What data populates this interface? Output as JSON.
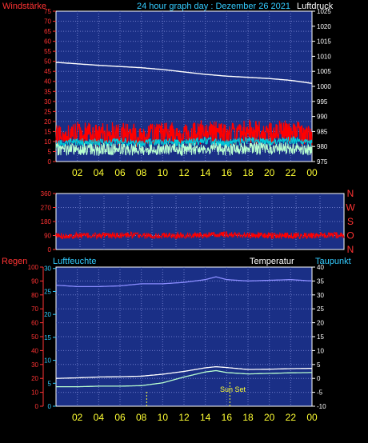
{
  "title": "24 hour graph day : Dezember 26 2021",
  "colors": {
    "panel": "#1a2f86",
    "grid": "#6b78c8",
    "wind": "#ff0000",
    "gust_low": "#b8ffd0",
    "pressure": "#ffffff",
    "humidity": "#8a8cff",
    "temp": "#ffffff",
    "dew": "#b8ffd0",
    "tick_yellow": "#ffff33",
    "label_red": "#ff3333",
    "label_cyan": "#33ccff",
    "label_white": "#ffffff"
  },
  "hour_ticks": [
    "02",
    "04",
    "06",
    "08",
    "10",
    "12",
    "14",
    "16",
    "18",
    "20",
    "22",
    "00"
  ],
  "panel1": {
    "left_label": "Windstärke",
    "right_label": "Luftdruck",
    "left_ticks": [
      "75",
      "70",
      "65",
      "60",
      "55",
      "50",
      "45",
      "40",
      "35",
      "30",
      "25",
      "20",
      "15",
      "10",
      "5",
      "0"
    ],
    "right_ticks": [
      "1025",
      "1020",
      "1015",
      "1010",
      "1005",
      "1000",
      "995",
      "990",
      "985",
      "980",
      "975"
    ]
  },
  "panel2": {
    "left_ticks": [
      "360",
      "270",
      "180",
      "90",
      "0"
    ],
    "right_compass": [
      "N",
      "W",
      "S",
      "O",
      "N"
    ]
  },
  "panel3": {
    "left_label": "Regen",
    "mid_label": "Luftfeuchte",
    "temp_label": "Temperatur",
    "dew_label": "Taupunkt",
    "rain_ticks": [
      "100",
      "90",
      "80",
      "70",
      "60",
      "50",
      "40",
      "30",
      "20",
      "10",
      "0"
    ],
    "hum_ticks": [
      "30",
      "25",
      "20",
      "15",
      "10",
      "5",
      "0"
    ],
    "temp_ticks": [
      "40",
      "35",
      "30",
      "25",
      "20",
      "15",
      "10",
      "5",
      "0",
      "-5",
      "-10"
    ],
    "annotation_sunset": "Sun Set",
    "sunrise_hour": 8.5,
    "sunset_hour": 16.3
  },
  "chart_data": [
    {
      "type": "line",
      "title": "24 hour graph day : Dezember 26 2021",
      "x_label": "hour",
      "xlim": [
        0,
        24
      ],
      "series": [
        {
          "name": "Luftdruck",
          "axis": "right",
          "x": [
            0,
            2,
            4,
            6,
            8,
            10,
            12,
            14,
            16,
            18,
            20,
            22,
            24
          ],
          "values": [
            1008,
            1007.5,
            1007,
            1006.6,
            1006.2,
            1005.6,
            1004.8,
            1004,
            1003.4,
            1003,
            1002.6,
            1002,
            1001
          ]
        },
        {
          "name": "Windstärke",
          "axis": "left",
          "x": [
            0,
            2,
            4,
            6,
            8,
            10,
            12,
            14,
            16,
            18,
            20,
            22,
            24
          ],
          "values": [
            13,
            14,
            13,
            14,
            13,
            14,
            13,
            15,
            13,
            15,
            14,
            15,
            13
          ]
        }
      ],
      "ylim_left": [
        0,
        75
      ],
      "ylim_right": [
        975,
        1025
      ],
      "grid": true
    },
    {
      "type": "line",
      "x_label": "hour",
      "xlim": [
        0,
        24
      ],
      "series": [
        {
          "name": "Windrichtung",
          "x": [
            0,
            2,
            4,
            6,
            8,
            10,
            12,
            14,
            16,
            18,
            20,
            22,
            24
          ],
          "values": [
            88,
            90,
            88,
            92,
            88,
            90,
            92,
            95,
            92,
            90,
            88,
            90,
            92
          ]
        }
      ],
      "ylim": [
        0,
        360
      ],
      "grid": true
    },
    {
      "type": "line",
      "x_label": "hour",
      "xlim": [
        0,
        24
      ],
      "series": [
        {
          "name": "Luftfeuchte",
          "axis": "rain",
          "x": [
            0,
            2,
            4,
            6,
            8,
            10,
            12,
            14,
            15,
            16,
            18,
            20,
            22,
            24
          ],
          "values": [
            87,
            86,
            86,
            86.5,
            88,
            88,
            89,
            91,
            93,
            91,
            90,
            90.5,
            91,
            90
          ]
        },
        {
          "name": "Temperatur",
          "axis": "temp",
          "x": [
            0,
            2,
            4,
            6,
            8,
            10,
            12,
            14,
            15,
            16,
            18,
            20,
            22,
            24
          ],
          "values": [
            0,
            0.2,
            0.5,
            0.6,
            0.8,
            1.5,
            2.5,
            3.8,
            4.2,
            3.9,
            3.2,
            3.3,
            3.5,
            3.6
          ]
        },
        {
          "name": "Taupunkt",
          "axis": "temp",
          "x": [
            0,
            2,
            4,
            6,
            8,
            10,
            12,
            14,
            15,
            16,
            18,
            20,
            22,
            24
          ],
          "values": [
            -3,
            -3,
            -2.8,
            -2.8,
            -2.6,
            -1.6,
            0.5,
            2.3,
            2.8,
            2.1,
            1.6,
            1.8,
            2.0,
            2.1
          ]
        }
      ],
      "ylim_rain": [
        0,
        100
      ],
      "ylim_temp": [
        -10,
        40
      ],
      "grid": true
    }
  ]
}
